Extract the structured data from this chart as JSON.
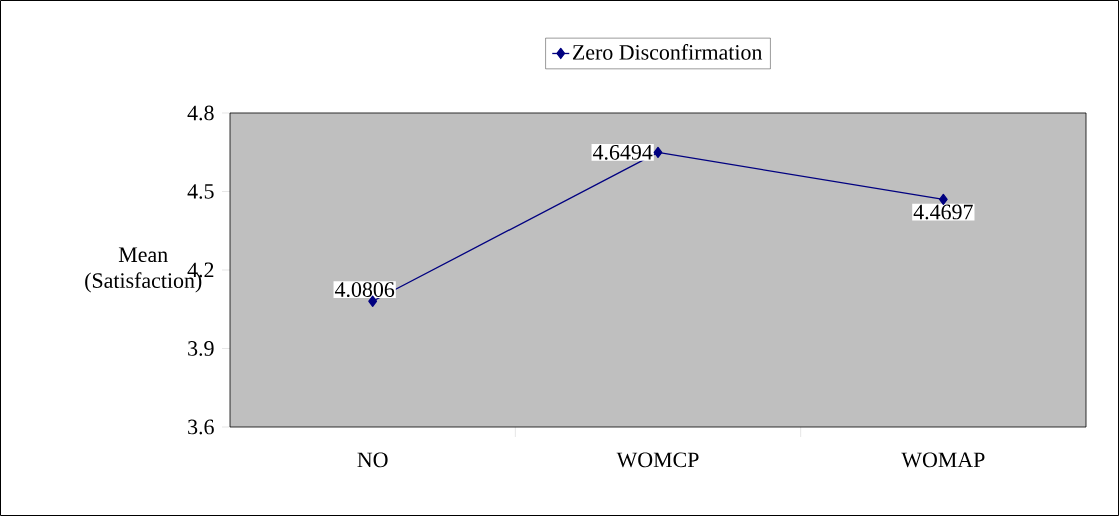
{
  "chart_data": {
    "type": "line",
    "ylabel": "Mean (Satisfaction)",
    "categories": [
      "NO",
      "WOMCP",
      "WOMAP"
    ],
    "series": [
      {
        "name": "Zero Disconfirmation",
        "color": "#000080",
        "values": [
          4.0806,
          4.6494,
          4.4697
        ]
      }
    ],
    "ylim": [
      3.6,
      4.8
    ],
    "yticks": [
      3.6,
      3.9,
      4.2,
      4.5,
      4.8
    ],
    "marker": "diamond",
    "line_style": "solid",
    "legend": "top",
    "data_labels": true,
    "grid": false
  }
}
